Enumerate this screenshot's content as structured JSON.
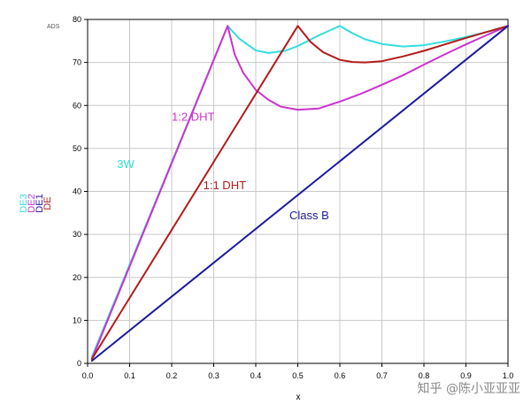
{
  "corner_label": "ADS",
  "watermark": "知乎 @陈小亚亚亚",
  "colors": {
    "cyan": "#33dddd",
    "magenta": "#cc33cc",
    "darkred": "#b31a1a",
    "navy": "#1a1aa0",
    "grid": "#c8c8c8"
  },
  "chart_data": {
    "type": "line",
    "xlabel": "x",
    "ylabel_stack": [
      {
        "text": "DE3",
        "color": "#33dddd"
      },
      {
        "text": "DE2",
        "color": "#cc33cc"
      },
      {
        "text": "DE1",
        "color": "#1a1aa0"
      },
      {
        "text": "DE",
        "color": "#b31a1a"
      }
    ],
    "xlim": [
      0,
      1.0
    ],
    "ylim": [
      0,
      80
    ],
    "xticks": [
      "0.0",
      "0.1",
      "0.2",
      "0.3",
      "0.4",
      "0.5",
      "0.6",
      "0.7",
      "0.8",
      "0.9",
      "1.0"
    ],
    "yticks": [
      "0",
      "10",
      "20",
      "30",
      "40",
      "50",
      "60",
      "70",
      "80"
    ],
    "grid": true,
    "series": [
      {
        "name": "DE3",
        "color": "#33dddd",
        "x": [
          0.01,
          0.333,
          0.36,
          0.4,
          0.43,
          0.47,
          0.5,
          0.55,
          0.6,
          0.63,
          0.66,
          0.7,
          0.75,
          0.8,
          0.85,
          0.9,
          0.95,
          1.0
        ],
        "y": [
          1.5,
          78.5,
          75.6,
          72.8,
          72.2,
          72.7,
          73.8,
          76.3,
          78.5,
          76.8,
          75.4,
          74.3,
          73.7,
          74.0,
          74.9,
          75.9,
          77.1,
          78.5
        ]
      },
      {
        "name": "DE2",
        "color": "#cc33cc",
        "x": [
          0.01,
          0.333,
          0.35,
          0.37,
          0.4,
          0.43,
          0.46,
          0.5,
          0.55,
          0.6,
          0.65,
          0.7,
          0.75,
          0.8,
          0.85,
          0.9,
          0.95,
          1.0
        ],
        "y": [
          1.0,
          78.5,
          71.8,
          67.6,
          63.6,
          61.3,
          59.7,
          59.0,
          59.3,
          60.9,
          62.7,
          64.8,
          67.0,
          69.5,
          71.9,
          74.2,
          76.4,
          78.5
        ]
      },
      {
        "name": "DE",
        "color": "#b31a1a",
        "x": [
          0.01,
          0.5,
          0.53,
          0.56,
          0.6,
          0.63,
          0.66,
          0.7,
          0.75,
          0.8,
          0.85,
          0.9,
          0.95,
          1.0
        ],
        "y": [
          1.0,
          78.5,
          74.8,
          72.4,
          70.6,
          70.1,
          70.0,
          70.3,
          71.4,
          72.7,
          74.2,
          75.7,
          77.1,
          78.5
        ]
      },
      {
        "name": "DE1",
        "color": "#1a1aa0",
        "x": [
          0.01,
          1.0
        ],
        "y": [
          0.6,
          78.5
        ]
      }
    ],
    "annotations": [
      {
        "text": "3W",
        "x": 0.07,
        "y": 45.5,
        "color": "#33dddd"
      },
      {
        "text": "1:2 DHT",
        "x": 0.2,
        "y": 56.5,
        "color": "#cc33cc"
      },
      {
        "text": "1:1 DHT",
        "x": 0.275,
        "y": 40.5,
        "color": "#b31a1a"
      },
      {
        "text": "Class B",
        "x": 0.48,
        "y": 33.5,
        "color": "#1a1aa0"
      }
    ]
  }
}
